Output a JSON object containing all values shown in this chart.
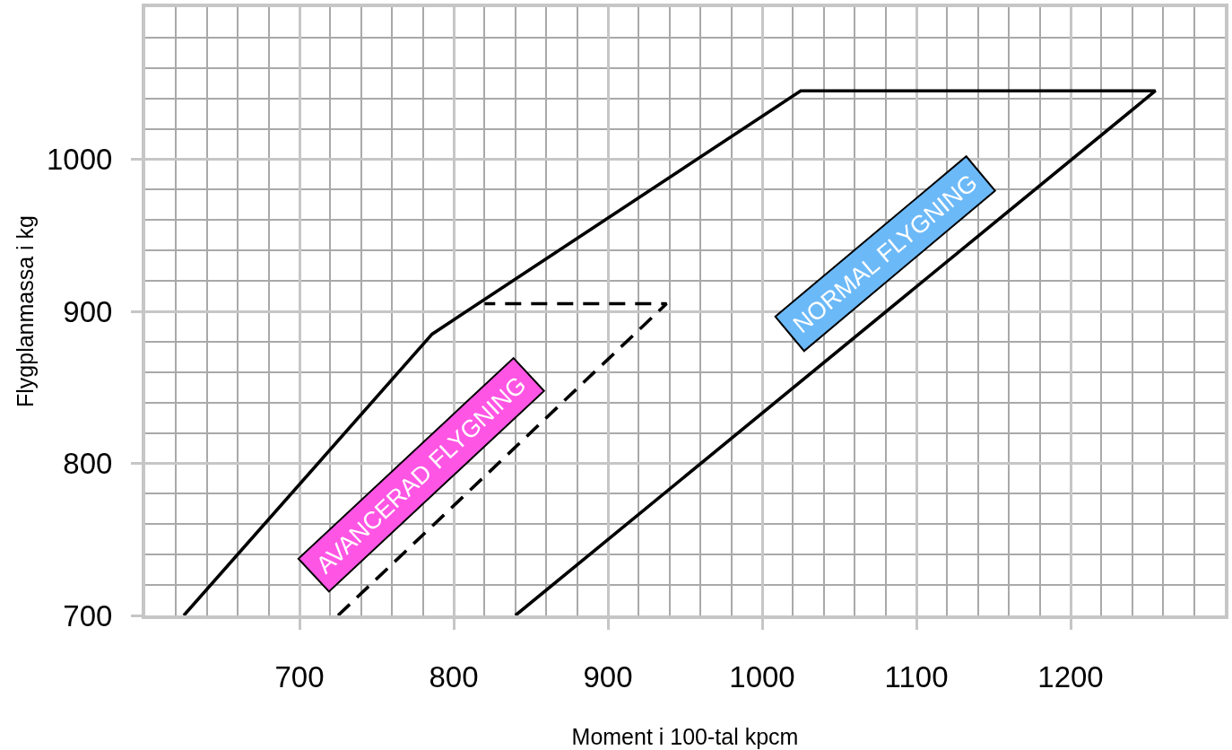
{
  "chart_data": {
    "type": "line",
    "xlabel": "Moment i 100-tal kpcm",
    "ylabel": "Flygplanmassa i kg",
    "series": [
      {
        "color": "#000000",
        "line_style": "solid",
        "x": [
          625,
          786,
          1025,
          1255,
          840
        ],
        "values": [
          700,
          885,
          1045,
          1045,
          700
        ]
      },
      {
        "color": "#000000",
        "line_style": "dashed",
        "x": [
          725,
          938,
          820
        ],
        "values": [
          700,
          905,
          905
        ]
      }
    ],
    "annotations": [
      "AVANCERAD FLYGNING",
      "NORMAL FLYGNING"
    ],
    "xlim": [
      600,
      1300
    ],
    "ylim": [
      700,
      1100
    ],
    "xticks": [
      {
        "value": 620,
        "label": null
      },
      {
        "value": 640,
        "label": null
      },
      {
        "value": 660,
        "label": null
      },
      {
        "value": 680,
        "label": null
      },
      700,
      {
        "value": 720,
        "label": null
      },
      {
        "value": 740,
        "label": null
      },
      {
        "value": 760,
        "label": null
      },
      {
        "value": 780,
        "label": null
      },
      800,
      {
        "value": 820,
        "label": null
      },
      {
        "value": 840,
        "label": null
      },
      {
        "value": 860,
        "label": null
      },
      {
        "value": 880,
        "label": null
      },
      900,
      {
        "value": 920,
        "label": null
      },
      {
        "value": 940,
        "label": null
      },
      {
        "value": 960,
        "label": null
      },
      {
        "value": 980,
        "label": null
      },
      1000,
      {
        "value": 1020,
        "label": null
      },
      {
        "value": 1040,
        "label": null
      },
      {
        "value": 1060,
        "label": null
      },
      {
        "value": 1080,
        "label": null
      },
      1100,
      {
        "value": 1120,
        "label": null
      },
      {
        "value": 1140,
        "label": null
      },
      {
        "value": 1160,
        "label": null
      },
      {
        "value": 1180,
        "label": null
      },
      1200,
      {
        "value": 1220,
        "label": null
      },
      {
        "value": 1240,
        "label": null
      },
      {
        "value": 1260,
        "label": null
      },
      {
        "value": 1280,
        "label": null
      }
    ],
    "yticks": [
      700,
      {
        "value": 720,
        "label": null
      },
      {
        "value": 740,
        "label": null
      },
      {
        "value": 760,
        "label": null
      },
      {
        "value": 780,
        "label": null
      },
      800,
      {
        "value": 820,
        "label": null
      },
      {
        "value": 840,
        "label": null
      },
      {
        "value": 860,
        "label": null
      },
      {
        "value": 880,
        "label": null
      },
      900,
      {
        "value": 920,
        "label": null
      },
      {
        "value": 940,
        "label": null
      },
      {
        "value": 960,
        "label": null
      },
      {
        "value": 980,
        "label": null
      },
      1000,
      {
        "value": 1020,
        "label": null
      },
      {
        "value": 1040,
        "label": null
      },
      {
        "value": 1060,
        "label": null
      },
      {
        "value": 1080,
        "label": null
      }
    ],
    "grid": true
  }
}
